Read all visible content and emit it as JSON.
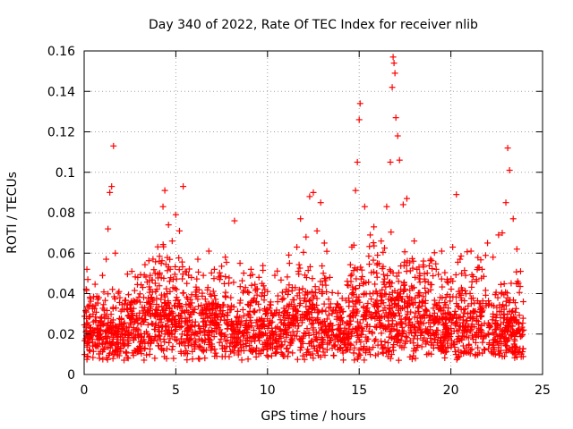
{
  "chart_data": {
    "type": "scatter",
    "title": "Day 340 of 2022, Rate Of TEC Index for receiver nlib",
    "xlabel": "GPS time / hours",
    "ylabel": "ROTI / TECUs",
    "xlim": [
      0,
      25
    ],
    "ylim": [
      0,
      0.16
    ],
    "xticks": [
      0,
      5,
      10,
      15,
      20,
      25
    ],
    "xtick_labels": [
      "0",
      "5",
      "10",
      "15",
      "20",
      "25"
    ],
    "yticks": [
      0,
      0.02,
      0.04,
      0.06,
      0.08,
      0.1,
      0.12,
      0.14,
      0.16
    ],
    "ytick_labels": [
      "0",
      "0.02",
      "0.04",
      "0.06",
      "0.08",
      "0.1",
      "0.12",
      "0.14",
      "0.16"
    ],
    "grid": true,
    "marker": "plus",
    "series_color": "#ff0000",
    "series": [
      {
        "points": [
          [
            0.1,
            0.031
          ],
          [
            0.15,
            0.052
          ],
          [
            0.2,
            0.047
          ],
          [
            0.3,
            0.018
          ],
          [
            0.5,
            0.026
          ],
          [
            0.8,
            0.038
          ],
          [
            1.0,
            0.049
          ],
          [
            1.2,
            0.057
          ],
          [
            1.3,
            0.072
          ],
          [
            1.4,
            0.09
          ],
          [
            1.5,
            0.093
          ],
          [
            1.6,
            0.113
          ],
          [
            1.7,
            0.06
          ],
          [
            1.9,
            0.041
          ],
          [
            2.2,
            0.035
          ],
          [
            2.6,
            0.051
          ],
          [
            3.0,
            0.028
          ],
          [
            3.3,
            0.033
          ],
          [
            3.6,
            0.049
          ],
          [
            3.9,
            0.041
          ],
          [
            4.1,
            0.056
          ],
          [
            4.3,
            0.083
          ],
          [
            4.4,
            0.091
          ],
          [
            4.6,
            0.074
          ],
          [
            4.8,
            0.066
          ],
          [
            5.0,
            0.079
          ],
          [
            5.2,
            0.071
          ],
          [
            5.4,
            0.093
          ],
          [
            5.6,
            0.045
          ],
          [
            5.9,
            0.031
          ],
          [
            6.2,
            0.057
          ],
          [
            6.5,
            0.049
          ],
          [
            6.8,
            0.061
          ],
          [
            7.1,
            0.052
          ],
          [
            7.4,
            0.047
          ],
          [
            7.7,
            0.058
          ],
          [
            8.0,
            0.038
          ],
          [
            8.2,
            0.076
          ],
          [
            8.5,
            0.055
          ],
          [
            8.8,
            0.043
          ],
          [
            9.1,
            0.052
          ],
          [
            9.4,
            0.036
          ],
          [
            9.7,
            0.045
          ],
          [
            10.0,
            0.041
          ],
          [
            10.4,
            0.049
          ],
          [
            10.8,
            0.037
          ],
          [
            11.2,
            0.055
          ],
          [
            11.6,
            0.063
          ],
          [
            11.8,
            0.077
          ],
          [
            12.1,
            0.068
          ],
          [
            12.3,
            0.088
          ],
          [
            12.5,
            0.09
          ],
          [
            12.7,
            0.071
          ],
          [
            12.9,
            0.085
          ],
          [
            13.1,
            0.065
          ],
          [
            13.4,
            0.048
          ],
          [
            13.8,
            0.035
          ],
          [
            14.1,
            0.031
          ],
          [
            14.4,
            0.044
          ],
          [
            14.6,
            0.063
          ],
          [
            14.8,
            0.091
          ],
          [
            14.9,
            0.105
          ],
          [
            15.0,
            0.126
          ],
          [
            15.05,
            0.134
          ],
          [
            15.3,
            0.083
          ],
          [
            15.6,
            0.069
          ],
          [
            15.8,
            0.073
          ],
          [
            16.0,
            0.059
          ],
          [
            16.2,
            0.066
          ],
          [
            16.5,
            0.083
          ],
          [
            16.7,
            0.105
          ],
          [
            16.8,
            0.142
          ],
          [
            16.85,
            0.157
          ],
          [
            16.9,
            0.154
          ],
          [
            16.95,
            0.149
          ],
          [
            17.0,
            0.127
          ],
          [
            17.1,
            0.118
          ],
          [
            17.2,
            0.106
          ],
          [
            17.4,
            0.084
          ],
          [
            17.6,
            0.087
          ],
          [
            18.0,
            0.066
          ],
          [
            18.3,
            0.05
          ],
          [
            18.6,
            0.046
          ],
          [
            18.9,
            0.057
          ],
          [
            19.2,
            0.052
          ],
          [
            19.5,
            0.061
          ],
          [
            19.8,
            0.047
          ],
          [
            20.1,
            0.063
          ],
          [
            20.3,
            0.089
          ],
          [
            20.5,
            0.057
          ],
          [
            20.8,
            0.049
          ],
          [
            21.1,
            0.061
          ],
          [
            21.4,
            0.047
          ],
          [
            21.7,
            0.052
          ],
          [
            22.0,
            0.065
          ],
          [
            22.3,
            0.058
          ],
          [
            22.6,
            0.069
          ],
          [
            22.8,
            0.07
          ],
          [
            23.0,
            0.085
          ],
          [
            23.1,
            0.112
          ],
          [
            23.2,
            0.101
          ],
          [
            23.4,
            0.077
          ],
          [
            23.6,
            0.062
          ],
          [
            23.8,
            0.051
          ],
          [
            23.95,
            0.036
          ]
        ]
      }
    ]
  }
}
